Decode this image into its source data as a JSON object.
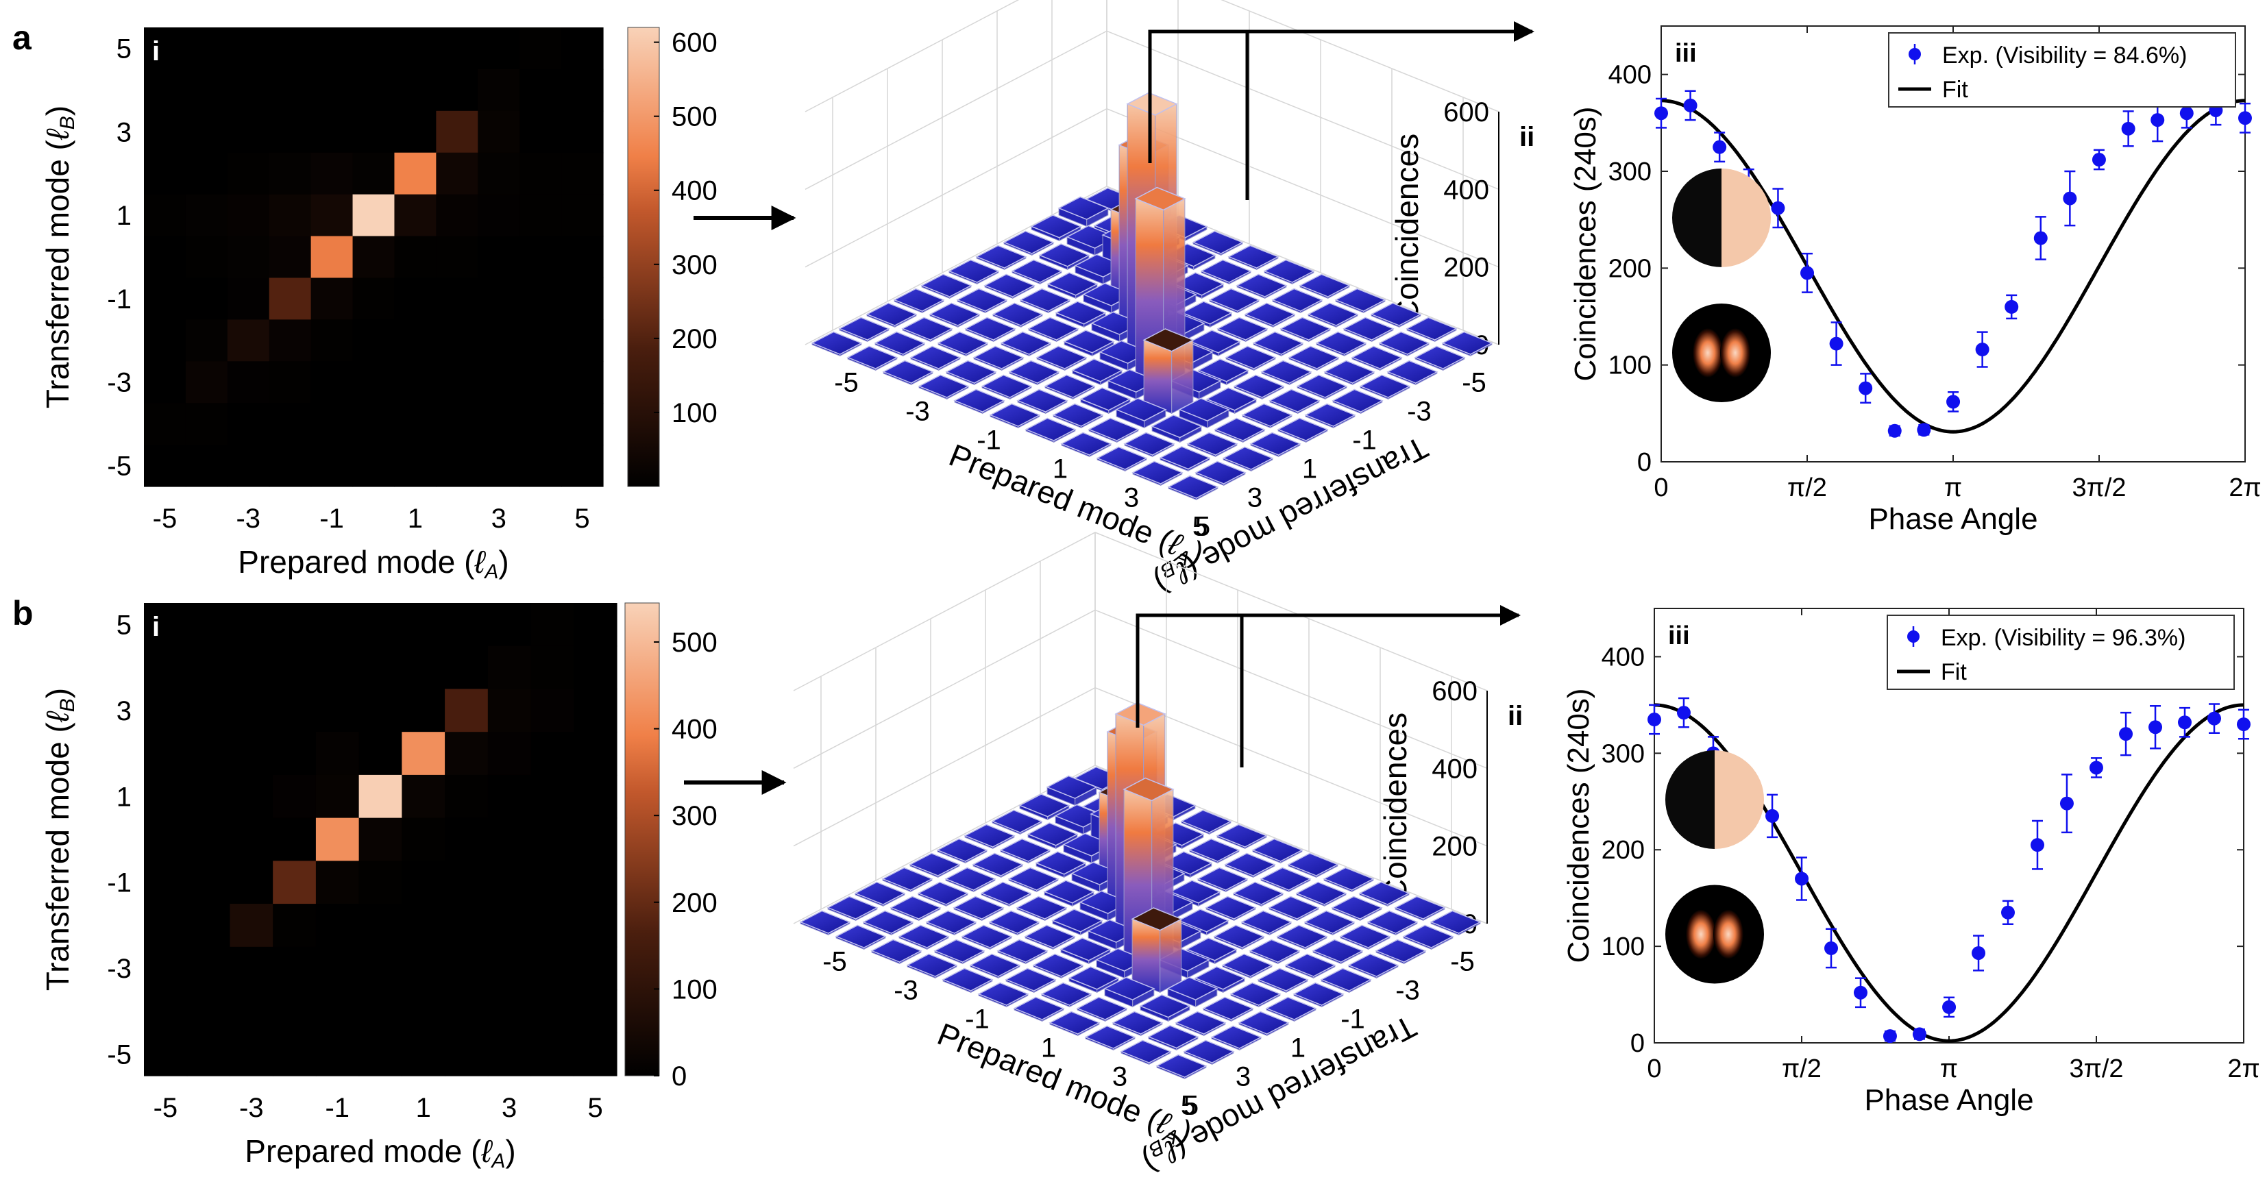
{
  "panel_labels": [
    "a",
    "b"
  ],
  "heatmap_ticks": [
    "-5",
    "-3",
    "-1",
    "1",
    "3",
    "5"
  ],
  "colors": {
    "dark": "#000000",
    "mid": "#f08048",
    "peak": "#f6c6a6",
    "bar_blue": "#1b1bb0",
    "data_blue": "#1010ee"
  },
  "chart_data": [
    {
      "type": "heatmap",
      "id": "a-i",
      "sublabel": "i",
      "xlabel": "Prepared mode (ℓA)",
      "ylabel": "Transferred mode (ℓB)",
      "modes": [
        -5,
        -4,
        -3,
        -2,
        -1,
        0,
        1,
        2,
        3,
        4,
        5
      ],
      "colorbar": {
        "range": [
          0,
          620
        ],
        "ticks": [
          "100",
          "200",
          "300",
          "400",
          "500",
          "600"
        ],
        "tick_values": [
          100,
          200,
          300,
          400,
          500,
          600
        ]
      },
      "matrix_rows_top_to_bottom": [
        [
          0,
          0,
          0,
          0,
          0,
          0,
          0,
          0,
          0,
          5,
          0
        ],
        [
          0,
          0,
          0,
          0,
          0,
          0,
          0,
          0,
          12,
          0,
          0
        ],
        [
          0,
          0,
          0,
          0,
          0,
          0,
          0,
          160,
          18,
          0,
          0
        ],
        [
          0,
          0,
          5,
          10,
          20,
          10,
          450,
          40,
          10,
          5,
          5
        ],
        [
          5,
          10,
          15,
          30,
          50,
          620,
          50,
          15,
          8,
          5,
          5
        ],
        [
          0,
          5,
          10,
          20,
          440,
          25,
          5,
          5,
          0,
          0,
          0
        ],
        [
          0,
          0,
          8,
          200,
          25,
          5,
          0,
          0,
          0,
          0,
          0
        ],
        [
          0,
          10,
          60,
          20,
          5,
          0,
          0,
          0,
          0,
          0,
          0
        ],
        [
          0,
          25,
          8,
          5,
          0,
          0,
          0,
          0,
          0,
          0,
          0
        ],
        [
          5,
          5,
          0,
          0,
          0,
          0,
          0,
          0,
          0,
          0,
          0
        ],
        [
          0,
          0,
          0,
          0,
          0,
          0,
          0,
          0,
          0,
          0,
          0
        ]
      ]
    },
    {
      "type": "bar3d",
      "id": "a-ii",
      "sublabel": "ii",
      "zlabel": "Coincidences",
      "xlabel": "Transferred mode (ℓB)",
      "ylabel": "Prepared mode (ℓA)",
      "zticks": [
        "0",
        "200",
        "400",
        "600"
      ],
      "zrange": [
        0,
        600
      ],
      "modes": [
        -5,
        -4,
        -3,
        -2,
        -1,
        0,
        1,
        2,
        3,
        4,
        5
      ],
      "diagonal_values": [
        2,
        10,
        60,
        200,
        440,
        620,
        450,
        160,
        12,
        5,
        2
      ]
    },
    {
      "type": "line",
      "id": "a-iii",
      "sublabel": "iii",
      "xlabel": "Phase Angle",
      "ylabel": "Coincidences (240s)",
      "xticks": [
        "0",
        "π/2",
        "π",
        "3π/2",
        "2π"
      ],
      "yticks": [
        "0",
        "100",
        "200",
        "300",
        "400"
      ],
      "xlim": [
        0,
        6.2832
      ],
      "ylim": [
        0,
        450
      ],
      "legend": {
        "placement": "top-right",
        "data_label": "Exp. (Visibility = 84.6%)",
        "fit_label": "Fit"
      },
      "fit": {
        "mean": 202,
        "amplitude": 171
      },
      "series": [
        {
          "name": "Exp. (Visibility = 84.6%)",
          "x": [
            0,
            0.314,
            0.628,
            0.942,
            1.257,
            1.571,
            1.885,
            2.199,
            2.513,
            2.827,
            3.142,
            3.456,
            3.77,
            4.084,
            4.398,
            4.712,
            5.027,
            5.341,
            5.655,
            5.969,
            6.283
          ],
          "y": [
            360,
            368,
            325,
            285,
            262,
            195,
            122,
            76,
            32,
            33,
            62,
            116,
            160,
            231,
            272,
            312,
            344,
            353,
            360,
            363,
            355
          ],
          "err": [
            15,
            15,
            15,
            17,
            20,
            20,
            22,
            15,
            5,
            5,
            10,
            18,
            12,
            22,
            28,
            10,
            18,
            22,
            15,
            15,
            15
          ]
        }
      ]
    },
    {
      "type": "heatmap",
      "id": "b-i",
      "sublabel": "i",
      "xlabel": "Prepared mode (ℓA)",
      "ylabel": "Transferred mode (ℓB)",
      "modes": [
        -5,
        -4,
        -3,
        -2,
        -1,
        0,
        1,
        2,
        3,
        4,
        5
      ],
      "colorbar": {
        "range": [
          0,
          545
        ],
        "ticks": [
          "0",
          "100",
          "200",
          "300",
          "400",
          "500"
        ],
        "tick_values": [
          0,
          100,
          200,
          300,
          400,
          500
        ]
      },
      "matrix_rows_top_to_bottom": [
        [
          0,
          0,
          0,
          0,
          0,
          0,
          0,
          0,
          0,
          5,
          0
        ],
        [
          0,
          0,
          0,
          0,
          0,
          0,
          0,
          0,
          10,
          5,
          0
        ],
        [
          0,
          0,
          0,
          0,
          0,
          0,
          0,
          160,
          15,
          8,
          0
        ],
        [
          0,
          0,
          0,
          0,
          10,
          0,
          420,
          20,
          8,
          0,
          0
        ],
        [
          0,
          0,
          0,
          8,
          15,
          540,
          20,
          5,
          0,
          0,
          0
        ],
        [
          0,
          0,
          0,
          0,
          420,
          20,
          5,
          0,
          0,
          0,
          0
        ],
        [
          0,
          0,
          0,
          190,
          15,
          5,
          0,
          0,
          0,
          0,
          0
        ],
        [
          0,
          0,
          60,
          5,
          0,
          0,
          0,
          0,
          0,
          0,
          0
        ],
        [
          0,
          0,
          0,
          0,
          0,
          0,
          0,
          0,
          0,
          0,
          0
        ],
        [
          0,
          0,
          0,
          0,
          0,
          0,
          0,
          0,
          0,
          0,
          0
        ],
        [
          0,
          0,
          0,
          0,
          0,
          0,
          0,
          0,
          0,
          0,
          0
        ]
      ]
    },
    {
      "type": "bar3d",
      "id": "b-ii",
      "sublabel": "ii",
      "zlabel": "Coincidences",
      "xlabel": "Transferred mode (ℓB)",
      "ylabel": "Prepared mode (ℓA)",
      "zticks": [
        "0",
        "200",
        "400",
        "600"
      ],
      "zrange": [
        0,
        600
      ],
      "modes": [
        -5,
        -4,
        -3,
        -2,
        -1,
        0,
        1,
        2,
        3,
        4,
        5
      ],
      "diagonal_values": [
        1,
        5,
        60,
        190,
        420,
        540,
        420,
        160,
        10,
        5,
        1
      ]
    },
    {
      "type": "line",
      "id": "b-iii",
      "sublabel": "iii",
      "xlabel": "Phase Angle",
      "ylabel": "Coincidences (240s)",
      "xticks": [
        "0",
        "π/2",
        "π",
        "3π/2",
        "2π"
      ],
      "yticks": [
        "0",
        "100",
        "200",
        "300",
        "400"
      ],
      "xlim": [
        0,
        6.2832
      ],
      "ylim": [
        0,
        450
      ],
      "legend": {
        "placement": "top-right",
        "data_label": "Exp. (Visibility = 96.3%)",
        "fit_label": "Fit"
      },
      "fit": {
        "mean": 176,
        "amplitude": 174
      },
      "series": [
        {
          "name": "Exp. (Visibility = 96.3%)",
          "x": [
            0,
            0.314,
            0.628,
            0.942,
            1.257,
            1.571,
            1.885,
            2.199,
            2.513,
            2.827,
            3.142,
            3.456,
            3.77,
            4.084,
            4.398,
            4.712,
            5.027,
            5.341,
            5.655,
            5.969,
            6.283
          ],
          "y": [
            335,
            342,
            300,
            258,
            235,
            170,
            98,
            52,
            7,
            9,
            37,
            93,
            135,
            205,
            248,
            285,
            320,
            327,
            332,
            336,
            330
          ],
          "err": [
            15,
            15,
            17,
            18,
            22,
            22,
            20,
            15,
            5,
            5,
            10,
            18,
            12,
            25,
            30,
            10,
            22,
            22,
            15,
            15,
            15
          ]
        }
      ]
    }
  ]
}
